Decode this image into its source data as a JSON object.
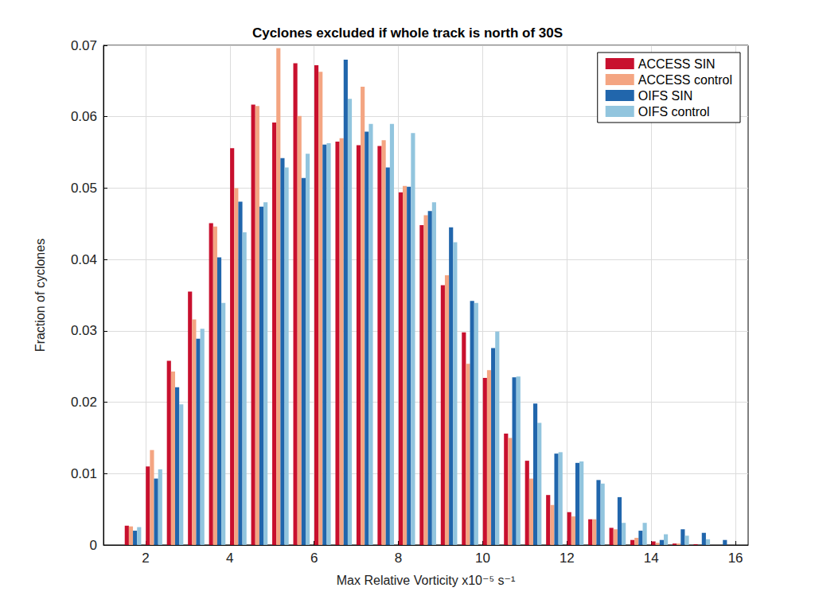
{
  "chart_data": {
    "type": "bar",
    "title": "Cyclones excluded if whole track is north of 30S",
    "x_label": "Max Relative Vorticity x10⁻⁵ s⁻¹",
    "y_label": "Fraction of cyclones",
    "x": [
      1.7,
      2.2,
      2.7,
      3.2,
      3.7,
      4.2,
      4.7,
      5.2,
      5.7,
      6.2,
      6.7,
      7.2,
      7.7,
      8.2,
      8.7,
      9.2,
      9.7,
      10.2,
      10.7,
      11.2,
      11.7,
      12.2,
      12.7,
      13.2,
      13.7,
      14.2,
      14.7,
      15.2,
      15.7
    ],
    "series": [
      {
        "name": "ACCESS SIN",
        "color": "#c8102e",
        "values": [
          0.0027,
          0.011,
          0.0258,
          0.0355,
          0.0451,
          0.0556,
          0.0617,
          0.0592,
          0.0675,
          0.0672,
          0.0565,
          0.056,
          0.0559,
          0.0494,
          0.0448,
          0.0364,
          0.0298,
          0.0234,
          0.0156,
          0.0118,
          0.007,
          0.0046,
          0.0036,
          0.0024,
          0.0007,
          0.0005,
          0.0002,
          0.0001,
          0
        ]
      },
      {
        "name": "ACCESS control",
        "color": "#f4a582",
        "values": [
          0.0026,
          0.0133,
          0.0243,
          0.0316,
          0.0446,
          0.05,
          0.0615,
          0.0696,
          0.0601,
          0.0663,
          0.057,
          0.0642,
          0.0567,
          0.0503,
          0.0462,
          0.0378,
          0.0254,
          0.0245,
          0.015,
          0.0093,
          0.0056,
          0.004,
          0.0036,
          0.0022,
          0.001,
          0.0003,
          0.0002,
          0,
          0
        ]
      },
      {
        "name": "OIFS SIN",
        "color": "#2166ac",
        "values": [
          0.002,
          0.0093,
          0.0221,
          0.0289,
          0.0403,
          0.0481,
          0.0474,
          0.0542,
          0.0514,
          0.0561,
          0.068,
          0.0579,
          0.0529,
          0.0502,
          0.0468,
          0.0445,
          0.0342,
          0.0276,
          0.0235,
          0.0198,
          0.0128,
          0.0115,
          0.0091,
          0.0067,
          0.002,
          0.0007,
          0.0022,
          0.0017,
          0.0007
        ]
      },
      {
        "name": "OIFS control",
        "color": "#92c5de",
        "values": [
          0.0025,
          0.0106,
          0.0197,
          0.0303,
          0.0339,
          0.0438,
          0.048,
          0.0529,
          0.0548,
          0.0563,
          0.0625,
          0.059,
          0.059,
          0.0577,
          0.048,
          0.0424,
          0.0339,
          0.0299,
          0.0236,
          0.0171,
          0.013,
          0.0117,
          0.0086,
          0.0031,
          0.0031,
          0.0015,
          0.0013,
          0.0008,
          0
        ]
      }
    ],
    "xlim": [
      1,
      16.3
    ],
    "xticks": [
      2,
      4,
      6,
      8,
      10,
      12,
      14,
      16
    ],
    "ylim": [
      0,
      0.07
    ],
    "yticks": [
      0,
      0.01,
      0.02,
      0.03,
      0.04,
      0.05,
      0.06,
      0.07
    ],
    "grid": true,
    "legend": "upper right"
  }
}
